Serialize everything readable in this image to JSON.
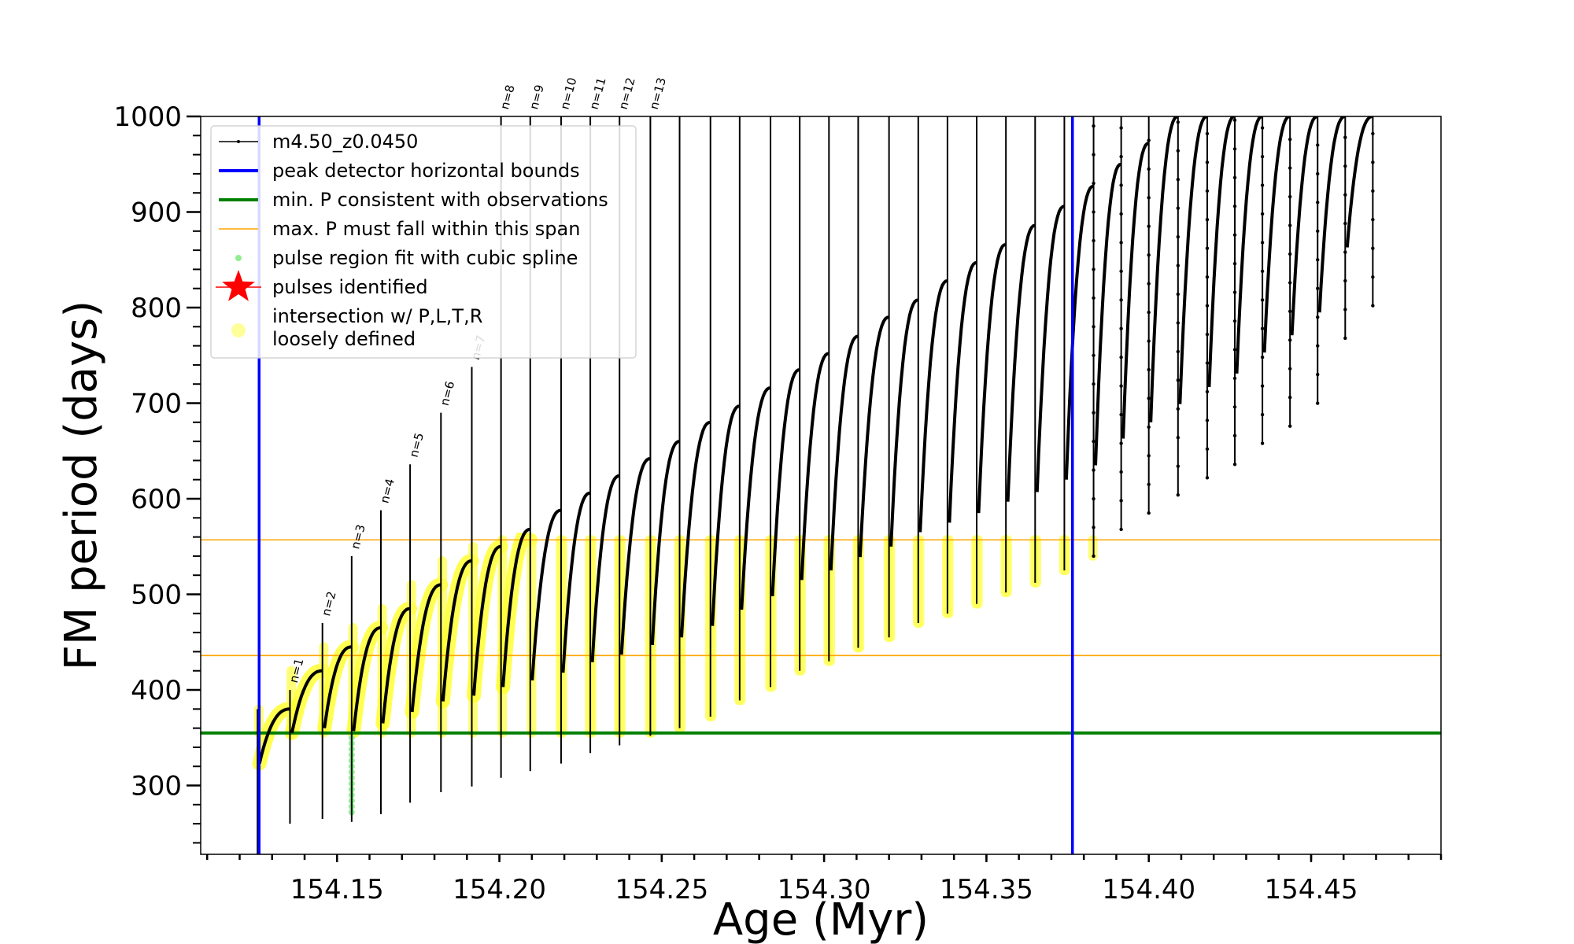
{
  "chart_data": {
    "type": "line",
    "xlabel": "Age (Myr)",
    "ylabel": "FM period (days)",
    "xlim": [
      154.108,
      154.49
    ],
    "ylim": [
      228,
      1000
    ],
    "x_ticks": [
      154.15,
      154.2,
      154.25,
      154.3,
      154.35,
      154.4,
      154.45
    ],
    "x_tick_labels": [
      "154.15",
      "154.20",
      "154.25",
      "154.30",
      "154.35",
      "154.40",
      "154.45"
    ],
    "y_ticks": [
      300,
      400,
      500,
      600,
      700,
      800,
      900,
      1000
    ],
    "y_tick_labels": [
      "300",
      "400",
      "500",
      "600",
      "700",
      "800",
      "900",
      "1000"
    ],
    "grid": false,
    "legend_position": "top-left",
    "legend": [
      {
        "label": "m4.50_z0.0450",
        "kind": "line-marker",
        "color": "#000000"
      },
      {
        "label": "peak detector horizontal bounds",
        "kind": "line",
        "color": "#0000ff"
      },
      {
        "label": "min. P consistent with observations",
        "kind": "line",
        "color": "#008000"
      },
      {
        "label": "max. P must fall within this span",
        "kind": "thin-line",
        "color": "#ffa500"
      },
      {
        "label": "pulse region fit with cubic spline",
        "kind": "dot",
        "color": "#90ee90"
      },
      {
        "label": "pulses identified",
        "kind": "star",
        "color": "#ff0000"
      },
      {
        "label": "intersection w/ P,L,T,R",
        "label2": "loosely defined",
        "kind": "big-dot",
        "color": "#ffff99"
      }
    ],
    "vertical_bounds": [
      154.126,
      154.3765
    ],
    "min_period": 355,
    "max_period_span": [
      436,
      557
    ],
    "pulse_ages": [
      154.1255,
      154.1355,
      154.1455,
      154.1545,
      154.1635,
      154.1725,
      154.182,
      154.1915,
      154.2005,
      154.2095,
      154.219,
      154.228,
      154.237,
      154.2465,
      154.2555,
      154.265,
      154.274,
      154.2835,
      154.2925,
      154.3015,
      154.3105,
      154.32,
      154.329,
      154.338,
      154.347,
      154.356,
      154.365,
      154.374,
      154.383,
      154.3915,
      154.4,
      154.409,
      154.418,
      154.4265,
      154.435,
      154.4435,
      154.452,
      154.4605,
      154.469
    ],
    "pulse_min_periods": [
      228,
      260,
      265,
      262,
      270,
      282,
      293,
      299,
      308,
      315,
      323,
      334,
      342,
      352,
      360,
      372,
      389,
      403,
      420,
      430,
      444,
      455,
      470,
      480,
      490,
      502,
      512,
      525,
      540,
      568,
      585,
      604,
      622,
      636,
      658,
      676,
      700,
      768,
      802
    ],
    "pulse_spike_periods": [
      380,
      400,
      470,
      540,
      588,
      636,
      690,
      738,
      1000,
      1000,
      1000,
      1000,
      1000,
      1000,
      1000,
      1000,
      1000,
      1000,
      1000,
      1000,
      1000,
      1000,
      1000,
      1000,
      1000,
      1000,
      1000,
      1000,
      1000,
      1000,
      1000,
      1000,
      1000,
      1000,
      1000,
      1000,
      1000,
      1000,
      1000
    ],
    "pulse_peak_periods": [
      380,
      420,
      445,
      465,
      485,
      510,
      535,
      550,
      568,
      588,
      606,
      624,
      642,
      660,
      680,
      697,
      716,
      735,
      752,
      770,
      790,
      808,
      828,
      847,
      866,
      886,
      906,
      927,
      950,
      972,
      1000,
      1000,
      1000,
      1000,
      1000,
      1000,
      1000,
      1000,
      1000
    ],
    "pulse_labels": [
      {
        "text": "n=1",
        "pulse": 1
      },
      {
        "text": "n=2",
        "pulse": 2
      },
      {
        "text": "n=3",
        "pulse": 3
      },
      {
        "text": "n=4",
        "pulse": 4
      },
      {
        "text": "n=5",
        "pulse": 5
      },
      {
        "text": "n=6",
        "pulse": 6
      },
      {
        "text": "n=7",
        "pulse": 7
      },
      {
        "text": "n=8",
        "pulse": 8
      },
      {
        "text": "n=9",
        "pulse": 9
      },
      {
        "text": "n=10",
        "pulse": 10
      },
      {
        "text": "n=11",
        "pulse": 11
      },
      {
        "text": "n=12",
        "pulse": 12
      },
      {
        "text": "n=13",
        "pulse": 13
      }
    ]
  }
}
